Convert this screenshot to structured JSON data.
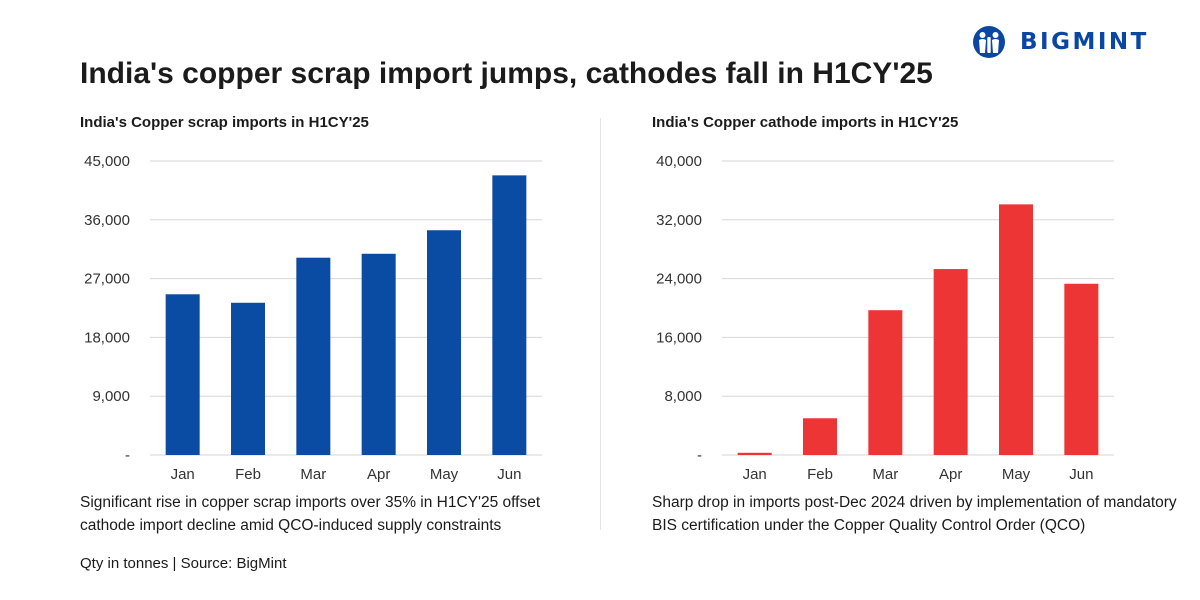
{
  "brand": {
    "name": "BIGMINT",
    "color": "#0a47a3"
  },
  "title": "India's copper scrap import jumps, cathodes fall in H1CY'25",
  "footnote": "Qty in tonnes | Source: BigMint",
  "charts": [
    {
      "caption": "Significant rise in copper scrap imports over 35% in H1CY'25 offset cathode import decline amid QCO-induced supply constraints"
    },
    {
      "caption": "Sharp drop in imports post-Dec 2024 driven by implementation of mandatory BIS certification under the Copper Quality Control Order (QCO)"
    }
  ],
  "chart_data": [
    {
      "type": "bar",
      "title": "India's Copper scrap imports in H1CY'25",
      "xlabel": "",
      "ylabel": "",
      "categories": [
        "Jan",
        "Feb",
        "Mar",
        "Apr",
        "May",
        "Jun"
      ],
      "series": [
        {
          "values": [
            24600,
            23300,
            30200,
            30800,
            34400,
            42800
          ]
        }
      ],
      "ylim": [
        0,
        45000
      ],
      "yticks": [
        0,
        9000,
        18000,
        27000,
        36000,
        45000
      ],
      "ytick_labels": [
        "-",
        "9,000",
        "18,000",
        "27,000",
        "36,000",
        "45,000"
      ],
      "color": "#0a4ba3",
      "grid": true,
      "legend": "none"
    },
    {
      "type": "bar",
      "title": "India's Copper cathode imports in H1CY'25",
      "xlabel": "",
      "ylabel": "",
      "categories": [
        "Jan",
        "Feb",
        "Mar",
        "Apr",
        "May",
        "Jun"
      ],
      "series": [
        {
          "values": [
            300,
            5000,
            19700,
            25300,
            34100,
            23300
          ]
        }
      ],
      "ylim": [
        0,
        40000
      ],
      "yticks": [
        0,
        8000,
        16000,
        24000,
        32000,
        40000
      ],
      "ytick_labels": [
        "-",
        "8,000",
        "16,000",
        "24,000",
        "32,000",
        "40,000"
      ],
      "color": "#ee3535",
      "grid": true,
      "legend": "none"
    }
  ]
}
